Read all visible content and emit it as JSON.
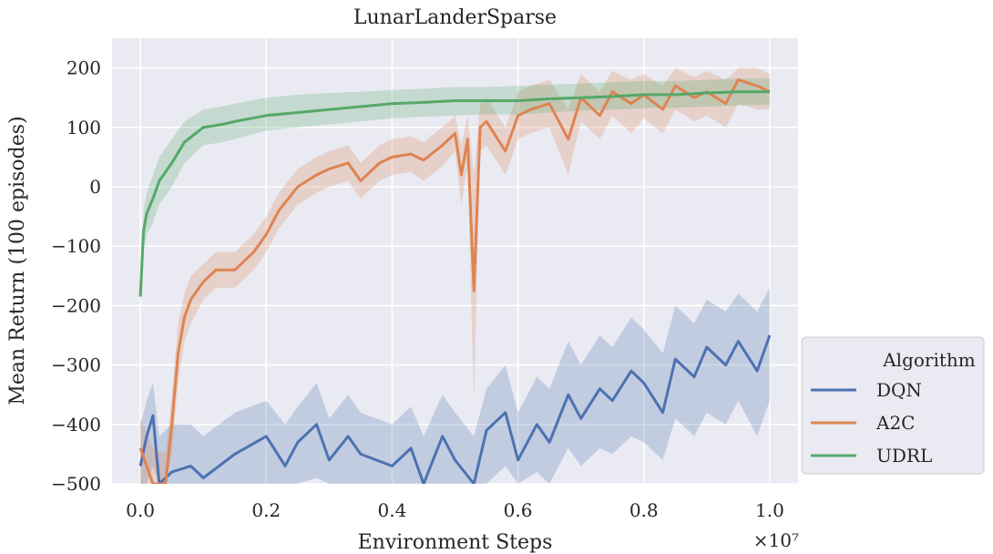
{
  "chart_data": {
    "type": "line",
    "title": "LunarLanderSparse",
    "xlabel": "Environment Steps",
    "ylabel": "Mean Return (100 episodes)",
    "x_multiplier_label": "×10⁷",
    "xlim": [
      -0.045,
      1.045
    ],
    "ylim": [
      -500,
      250
    ],
    "xticks": [
      0.0,
      0.2,
      0.4,
      0.6,
      0.8,
      1.0
    ],
    "xtick_labels": [
      "0.0",
      "0.2",
      "0.4",
      "0.6",
      "0.8",
      "1.0"
    ],
    "yticks": [
      -500,
      -400,
      -300,
      -200,
      -100,
      0,
      100,
      200
    ],
    "ytick_labels": [
      "−500",
      "−400",
      "−300",
      "−200",
      "−100",
      "0",
      "100",
      "200"
    ],
    "grid": true,
    "legend": {
      "title": "Algorithm",
      "placement": "outside-right-bottom"
    },
    "colors": {
      "plot_background": "#eaeaf2",
      "grid": "#ffffff",
      "DQN": "#4c72b0",
      "A2C": "#dd8452",
      "UDRL": "#55a868"
    },
    "series": [
      {
        "name": "DQN",
        "x": [
          0.0,
          0.01,
          0.02,
          0.03,
          0.05,
          0.08,
          0.1,
          0.15,
          0.2,
          0.23,
          0.25,
          0.28,
          0.3,
          0.33,
          0.35,
          0.4,
          0.43,
          0.45,
          0.48,
          0.5,
          0.53,
          0.55,
          0.58,
          0.6,
          0.63,
          0.65,
          0.68,
          0.7,
          0.73,
          0.75,
          0.78,
          0.8,
          0.83,
          0.85,
          0.88,
          0.9,
          0.93,
          0.95,
          0.98,
          1.0
        ],
        "y": [
          -470,
          -420,
          -385,
          -500,
          -480,
          -470,
          -490,
          -450,
          -420,
          -470,
          -430,
          -400,
          -460,
          -420,
          -450,
          -470,
          -440,
          -500,
          -420,
          -460,
          -500,
          -410,
          -380,
          -460,
          -400,
          -430,
          -350,
          -390,
          -340,
          -360,
          -310,
          -330,
          -380,
          -290,
          -320,
          -270,
          -300,
          -260,
          -310,
          -250
        ],
        "band_low": [
          -500,
          -500,
          -470,
          -500,
          -500,
          -500,
          -500,
          -500,
          -500,
          -500,
          -500,
          -490,
          -500,
          -500,
          -500,
          -500,
          -500,
          -500,
          -500,
          -500,
          -500,
          -500,
          -470,
          -500,
          -480,
          -500,
          -440,
          -470,
          -440,
          -450,
          -420,
          -430,
          -460,
          -390,
          -420,
          -380,
          -400,
          -360,
          -420,
          -360
        ],
        "band_high": [
          -400,
          -360,
          -330,
          -420,
          -400,
          -400,
          -420,
          -380,
          -360,
          -400,
          -370,
          -330,
          -390,
          -350,
          -380,
          -400,
          -370,
          -420,
          -350,
          -380,
          -420,
          -340,
          -300,
          -380,
          -320,
          -340,
          -260,
          -300,
          -250,
          -270,
          -220,
          -240,
          -280,
          -200,
          -230,
          -190,
          -210,
          -180,
          -210,
          -170
        ]
      },
      {
        "name": "A2C",
        "x": [
          0.0,
          0.02,
          0.04,
          0.05,
          0.06,
          0.07,
          0.08,
          0.1,
          0.12,
          0.15,
          0.18,
          0.2,
          0.22,
          0.25,
          0.28,
          0.3,
          0.33,
          0.35,
          0.38,
          0.4,
          0.43,
          0.45,
          0.48,
          0.5,
          0.51,
          0.52,
          0.53,
          0.54,
          0.55,
          0.58,
          0.6,
          0.62,
          0.65,
          0.68,
          0.7,
          0.73,
          0.75,
          0.78,
          0.8,
          0.83,
          0.85,
          0.88,
          0.9,
          0.93,
          0.95,
          0.98,
          1.0
        ],
        "y": [
          -440,
          -500,
          -500,
          -400,
          -280,
          -220,
          -190,
          -160,
          -140,
          -140,
          -110,
          -80,
          -40,
          0,
          20,
          30,
          40,
          10,
          40,
          50,
          55,
          45,
          70,
          90,
          20,
          80,
          -175,
          100,
          110,
          60,
          120,
          130,
          140,
          80,
          150,
          120,
          160,
          140,
          155,
          130,
          170,
          150,
          160,
          140,
          180,
          170,
          160
        ],
        "band_low": [
          -500,
          -500,
          -500,
          -450,
          -330,
          -260,
          -230,
          -190,
          -170,
          -170,
          -140,
          -110,
          -70,
          -30,
          -10,
          0,
          10,
          -20,
          10,
          20,
          25,
          10,
          35,
          60,
          -30,
          40,
          -360,
          60,
          70,
          20,
          80,
          90,
          100,
          20,
          110,
          80,
          120,
          90,
          115,
          90,
          130,
          110,
          120,
          100,
          140,
          130,
          130
        ],
        "band_high": [
          -390,
          -440,
          -450,
          -350,
          -230,
          -180,
          -150,
          -130,
          -110,
          -110,
          -80,
          -50,
          -10,
          30,
          50,
          60,
          70,
          40,
          70,
          80,
          85,
          75,
          100,
          120,
          70,
          120,
          20,
          140,
          150,
          100,
          160,
          170,
          180,
          130,
          190,
          160,
          195,
          180,
          190,
          170,
          200,
          185,
          195,
          180,
          200,
          200,
          190
        ]
      },
      {
        "name": "UDRL",
        "x": [
          0.0,
          0.005,
          0.01,
          0.02,
          0.03,
          0.05,
          0.07,
          0.1,
          0.13,
          0.15,
          0.2,
          0.25,
          0.3,
          0.35,
          0.4,
          0.45,
          0.5,
          0.55,
          0.6,
          0.65,
          0.7,
          0.75,
          0.8,
          0.85,
          0.9,
          0.95,
          1.0
        ],
        "y": [
          -185,
          -75,
          -45,
          -20,
          10,
          40,
          75,
          100,
          105,
          110,
          120,
          125,
          130,
          135,
          140,
          142,
          145,
          145,
          145,
          148,
          150,
          152,
          155,
          155,
          158,
          160,
          160
        ],
        "band_low": [
          -200,
          -110,
          -80,
          -60,
          -30,
          0,
          40,
          70,
          75,
          80,
          95,
          100,
          105,
          110,
          115,
          118,
          120,
          122,
          122,
          125,
          128,
          130,
          132,
          133,
          135,
          137,
          138
        ],
        "band_high": [
          -170,
          -40,
          -10,
          20,
          50,
          80,
          110,
          130,
          135,
          140,
          150,
          155,
          158,
          160,
          163,
          165,
          168,
          168,
          170,
          172,
          174,
          176,
          178,
          178,
          180,
          182,
          182
        ]
      }
    ]
  }
}
